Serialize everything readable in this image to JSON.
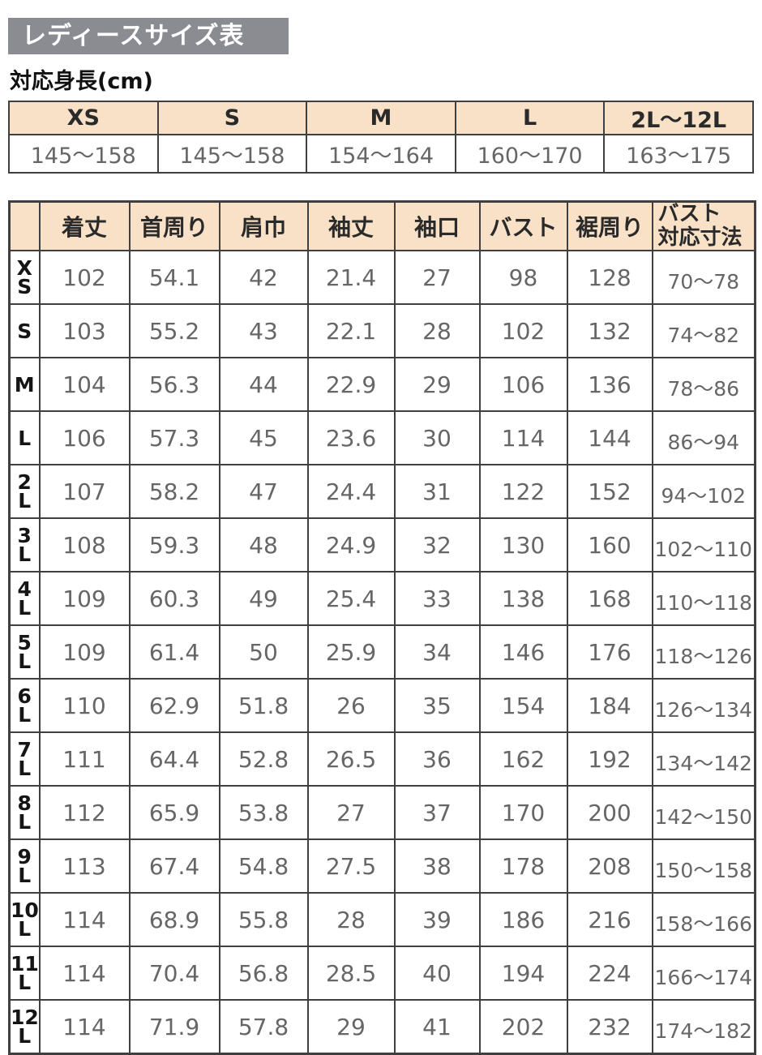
{
  "title": "レディースサイズ表",
  "height_section": {
    "heading": "対応身長(cm)",
    "sizes": [
      "XS",
      "S",
      "M",
      "L",
      "2L〜12L"
    ],
    "ranges": [
      "145〜158",
      "145〜158",
      "154〜164",
      "160〜170",
      "163〜175"
    ]
  },
  "size_table": {
    "columns": [
      "着丈",
      "首周り",
      "肩巾",
      "袖丈",
      "袖口",
      "バスト",
      "裾周り",
      "バスト\n対応寸法"
    ],
    "rows": [
      {
        "size": "X\nS",
        "values": [
          "102",
          "54.1",
          "42",
          "21.4",
          "27",
          "98",
          "128",
          "70〜78"
        ]
      },
      {
        "size": "S",
        "values": [
          "103",
          "55.2",
          "43",
          "22.1",
          "28",
          "102",
          "132",
          "74〜82"
        ]
      },
      {
        "size": "M",
        "values": [
          "104",
          "56.3",
          "44",
          "22.9",
          "29",
          "106",
          "136",
          "78〜86"
        ]
      },
      {
        "size": "L",
        "values": [
          "106",
          "57.3",
          "45",
          "23.6",
          "30",
          "114",
          "144",
          "86〜94"
        ]
      },
      {
        "size": "2\nL",
        "values": [
          "107",
          "58.2",
          "47",
          "24.4",
          "31",
          "122",
          "152",
          "94〜102"
        ]
      },
      {
        "size": "3\nL",
        "values": [
          "108",
          "59.3",
          "48",
          "24.9",
          "32",
          "130",
          "160",
          "102〜110"
        ]
      },
      {
        "size": "4\nL",
        "values": [
          "109",
          "60.3",
          "49",
          "25.4",
          "33",
          "138",
          "168",
          "110〜118"
        ]
      },
      {
        "size": "5\nL",
        "values": [
          "109",
          "61.4",
          "50",
          "25.9",
          "34",
          "146",
          "176",
          "118〜126"
        ]
      },
      {
        "size": "6\nL",
        "values": [
          "110",
          "62.9",
          "51.8",
          "26",
          "35",
          "154",
          "184",
          "126〜134"
        ]
      },
      {
        "size": "7\nL",
        "values": [
          "111",
          "64.4",
          "52.8",
          "26.5",
          "36",
          "162",
          "192",
          "134〜142"
        ]
      },
      {
        "size": "8\nL",
        "values": [
          "112",
          "65.9",
          "53.8",
          "27",
          "37",
          "170",
          "200",
          "142〜150"
        ]
      },
      {
        "size": "9\nL",
        "values": [
          "113",
          "67.4",
          "54.8",
          "27.5",
          "38",
          "178",
          "208",
          "150〜158"
        ]
      },
      {
        "size": "10\nL",
        "values": [
          "114",
          "68.9",
          "55.8",
          "28",
          "39",
          "186",
          "216",
          "158〜166"
        ]
      },
      {
        "size": "11\nL",
        "values": [
          "114",
          "70.4",
          "56.8",
          "28.5",
          "40",
          "194",
          "224",
          "166〜174"
        ]
      },
      {
        "size": "12\nL",
        "values": [
          "114",
          "71.9",
          "57.8",
          "29",
          "41",
          "202",
          "232",
          "174〜182"
        ]
      }
    ]
  },
  "colors": {
    "title_bg": "#8b8b92",
    "title_text": "#ffffff",
    "header_bg": "#f8e1c6",
    "border": "#3f3f3f",
    "value_text": "#666666",
    "label_text": "#151515"
  }
}
